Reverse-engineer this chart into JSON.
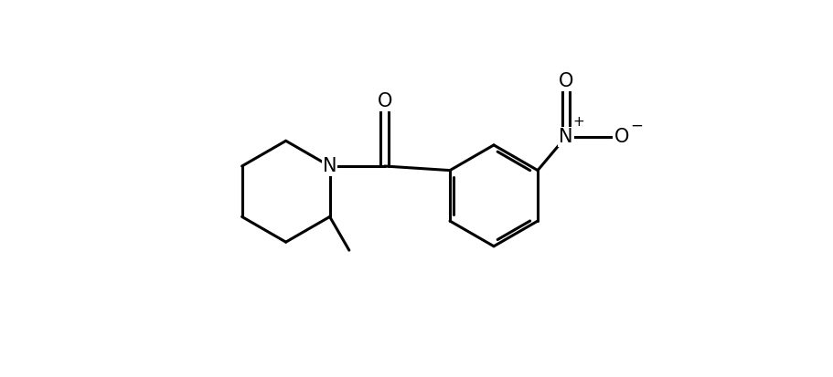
{
  "background_color": "#ffffff",
  "line_color": "#000000",
  "line_width": 2.2,
  "font_size": 14,
  "figsize": [
    9.12,
    4.13
  ],
  "dpi": 100,
  "xlim": [
    0,
    9.12
  ],
  "ylim": [
    0,
    4.13
  ]
}
